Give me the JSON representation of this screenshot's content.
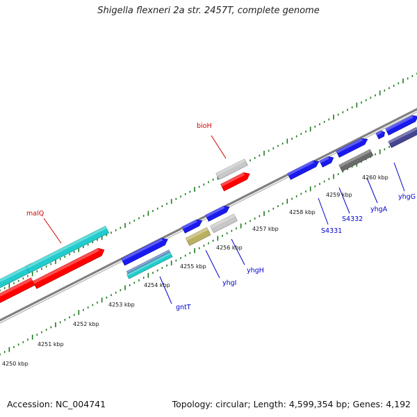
{
  "title": "Shigella flexneri 2a str. 2457T, complete genome",
  "footer": {
    "accession": "Accession: NC_004741",
    "summary": "Topology: circular; Length: 4,599,354 bp; Genes: 4,192"
  },
  "scale_ticks": [
    "4250 kbp",
    "4251 kbp",
    "4252 kbp",
    "4253 kbp",
    "4254 kbp",
    "4255 kbp",
    "4256 kbp",
    "4257 kbp",
    "4258 kbp",
    "4259 kbp",
    "4260 kbp"
  ],
  "gene_labels": [
    {
      "name": "malQ",
      "color": "#cc0000"
    },
    {
      "name": "bioH",
      "color": "#cc0000"
    },
    {
      "name": "gntT",
      "color": "#0000cc"
    },
    {
      "name": "yhgI",
      "color": "#0000cc"
    },
    {
      "name": "yhgH",
      "color": "#0000cc"
    },
    {
      "name": "S4331",
      "color": "#0000cc"
    },
    {
      "name": "S4332",
      "color": "#0000cc"
    },
    {
      "name": "yhgA",
      "color": "#0000cc"
    },
    {
      "name": "yhgG",
      "color": "#0000cc"
    }
  ],
  "colors": {
    "backbone": "#808080",
    "tick": "#1a7a1a",
    "red": "#ff0000",
    "cyan": "#22cccc",
    "blue": "#1a1aee",
    "gray": "#c8c8c8",
    "darkgray": "#6a6a6a",
    "olive": "#bbb060",
    "steel": "#5080c0",
    "navy": "#454590"
  }
}
